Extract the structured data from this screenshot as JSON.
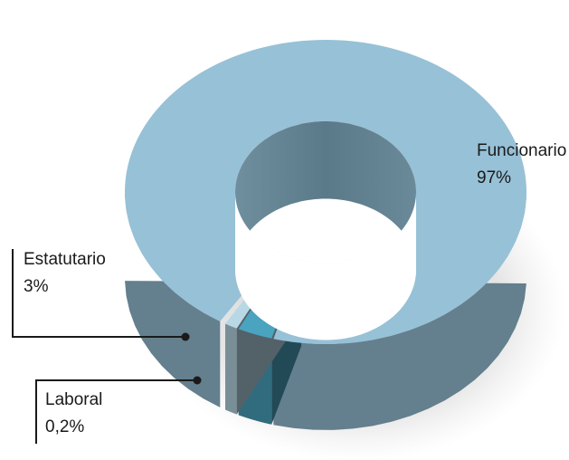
{
  "chart_data": {
    "type": "pie",
    "style": "3d-donut",
    "categories": [
      "Funcionario",
      "Estatutario",
      "Laboral"
    ],
    "series": [
      {
        "values": [
          97,
          3,
          0.2
        ]
      }
    ],
    "labels": [
      {
        "name": "Funcionario",
        "value": "97%"
      },
      {
        "name": "Estatutario",
        "value": "3%"
      },
      {
        "name": "Laboral",
        "value": "0,2%"
      }
    ],
    "colors": {
      "Funcionario": "#97c1d6",
      "Estatutario": "#4aa3bf",
      "Laboral": "#b8d8e6"
    }
  }
}
